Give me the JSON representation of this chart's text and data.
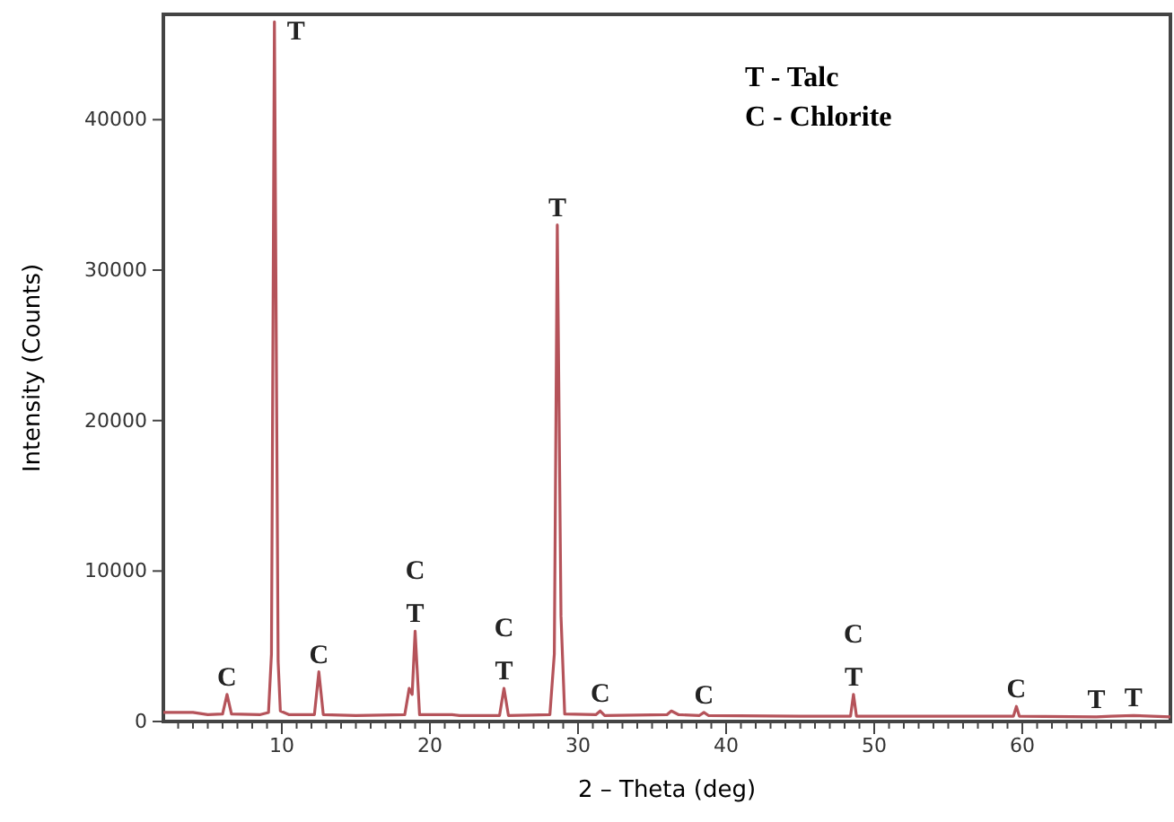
{
  "chart_data": {
    "type": "line",
    "xlabel": "2 – Theta (deg)",
    "ylabel": "Intensity (Counts)",
    "xlim": [
      2,
      70
    ],
    "ylim": [
      0,
      47000
    ],
    "xticks": [
      {
        "value": 3,
        "label": null
      },
      {
        "value": 4,
        "label": null
      },
      {
        "value": 5,
        "label": null
      },
      {
        "value": 6,
        "label": null
      },
      {
        "value": 7,
        "label": null
      },
      {
        "value": 8,
        "label": null
      },
      {
        "value": 9,
        "label": null
      },
      10,
      {
        "value": 11,
        "label": null
      },
      {
        "value": 12,
        "label": null
      },
      {
        "value": 13,
        "label": null
      },
      {
        "value": 14,
        "label": null
      },
      {
        "value": 15,
        "label": null
      },
      {
        "value": 16,
        "label": null
      },
      {
        "value": 17,
        "label": null
      },
      {
        "value": 18,
        "label": null
      },
      {
        "value": 19,
        "label": null
      },
      20,
      {
        "value": 21,
        "label": null
      },
      {
        "value": 22,
        "label": null
      },
      {
        "value": 23,
        "label": null
      },
      {
        "value": 24,
        "label": null
      },
      {
        "value": 25,
        "label": null
      },
      {
        "value": 26,
        "label": null
      },
      {
        "value": 27,
        "label": null
      },
      {
        "value": 28,
        "label": null
      },
      {
        "value": 29,
        "label": null
      },
      30,
      {
        "value": 31,
        "label": null
      },
      {
        "value": 32,
        "label": null
      },
      {
        "value": 33,
        "label": null
      },
      {
        "value": 34,
        "label": null
      },
      {
        "value": 35,
        "label": null
      },
      {
        "value": 36,
        "label": null
      },
      {
        "value": 37,
        "label": null
      },
      {
        "value": 38,
        "label": null
      },
      {
        "value": 39,
        "label": null
      },
      40,
      {
        "value": 41,
        "label": null
      },
      {
        "value": 42,
        "label": null
      },
      {
        "value": 43,
        "label": null
      },
      {
        "value": 44,
        "label": null
      },
      {
        "value": 45,
        "label": null
      },
      {
        "value": 46,
        "label": null
      },
      {
        "value": 47,
        "label": null
      },
      {
        "value": 48,
        "label": null
      },
      {
        "value": 49,
        "label": null
      },
      50,
      {
        "value": 51,
        "label": null
      },
      {
        "value": 52,
        "label": null
      },
      {
        "value": 53,
        "label": null
      },
      {
        "value": 54,
        "label": null
      },
      {
        "value": 55,
        "label": null
      },
      {
        "value": 56,
        "label": null
      },
      {
        "value": 57,
        "label": null
      },
      {
        "value": 58,
        "label": null
      },
      {
        "value": 59,
        "label": null
      },
      60,
      {
        "value": 61,
        "label": null
      },
      {
        "value": 62,
        "label": null
      },
      {
        "value": 63,
        "label": null
      },
      {
        "value": 64,
        "label": null
      },
      {
        "value": 65,
        "label": null
      },
      {
        "value": 66,
        "label": null
      },
      {
        "value": 67,
        "label": null
      },
      {
        "value": 68,
        "label": null
      },
      {
        "value": 69,
        "label": null
      }
    ],
    "yticks": [
      0,
      10000,
      20000,
      30000,
      40000
    ],
    "grid": false,
    "marker": "none",
    "line_style": "solid",
    "series": [
      {
        "color": "#b5535a",
        "x": [
          2,
          4,
          5,
          6.0,
          6.3,
          6.6,
          8.5,
          9.1,
          9.3,
          9.5,
          9.75,
          9.9,
          10.5,
          12.2,
          12.5,
          12.8,
          15,
          18.3,
          18.6,
          18.8,
          19.0,
          19.3,
          21.5,
          22,
          24.7,
          25.0,
          25.3,
          28.1,
          28.4,
          28.6,
          28.85,
          29.1,
          31.2,
          31.5,
          31.8,
          36,
          36.3,
          36.8,
          38.2,
          38.5,
          38.8,
          45,
          48.4,
          48.6,
          48.8,
          55,
          59.4,
          59.6,
          59.8,
          65,
          66,
          67.5,
          70
        ],
        "values": [
          600,
          600,
          450,
          500,
          1800,
          500,
          450,
          600,
          4500,
          46500,
          4000,
          700,
          450,
          450,
          3300,
          450,
          400,
          450,
          2200,
          1800,
          6000,
          450,
          450,
          400,
          400,
          2200,
          400,
          450,
          4500,
          33000,
          7000,
          500,
          450,
          700,
          400,
          450,
          700,
          450,
          400,
          600,
          400,
          350,
          350,
          1800,
          350,
          350,
          350,
          1000,
          350,
          300,
          350,
          400,
          300
        ]
      }
    ],
    "annotations": [
      "T - Talc",
      "C - Chlorite",
      {
        "text": "C",
        "x": 6.3,
        "y": 1800
      },
      {
        "text": "T",
        "x": 9.5,
        "y": 46500
      },
      {
        "text": "C",
        "x": 12.5,
        "y": 3300
      },
      {
        "text": "T",
        "x": 19.0,
        "y": 6000
      },
      {
        "text": "C",
        "x": 19.0,
        "y": 6000
      },
      {
        "text": "T",
        "x": 25.0,
        "y": 2200
      },
      {
        "text": "C",
        "x": 25.0,
        "y": 2200
      },
      {
        "text": "T",
        "x": 28.6,
        "y": 33000
      },
      {
        "text": "C",
        "x": 31.5,
        "y": 700
      },
      {
        "text": "C",
        "x": 38.5,
        "y": 600
      },
      {
        "text": "T",
        "x": 48.6,
        "y": 1800
      },
      {
        "text": "C",
        "x": 48.6,
        "y": 1800
      },
      {
        "text": "C",
        "x": 59.6,
        "y": 1000
      },
      {
        "text": "T",
        "x": 65,
        "y": 300
      },
      {
        "text": "T",
        "x": 67.5,
        "y": 400
      }
    ]
  }
}
